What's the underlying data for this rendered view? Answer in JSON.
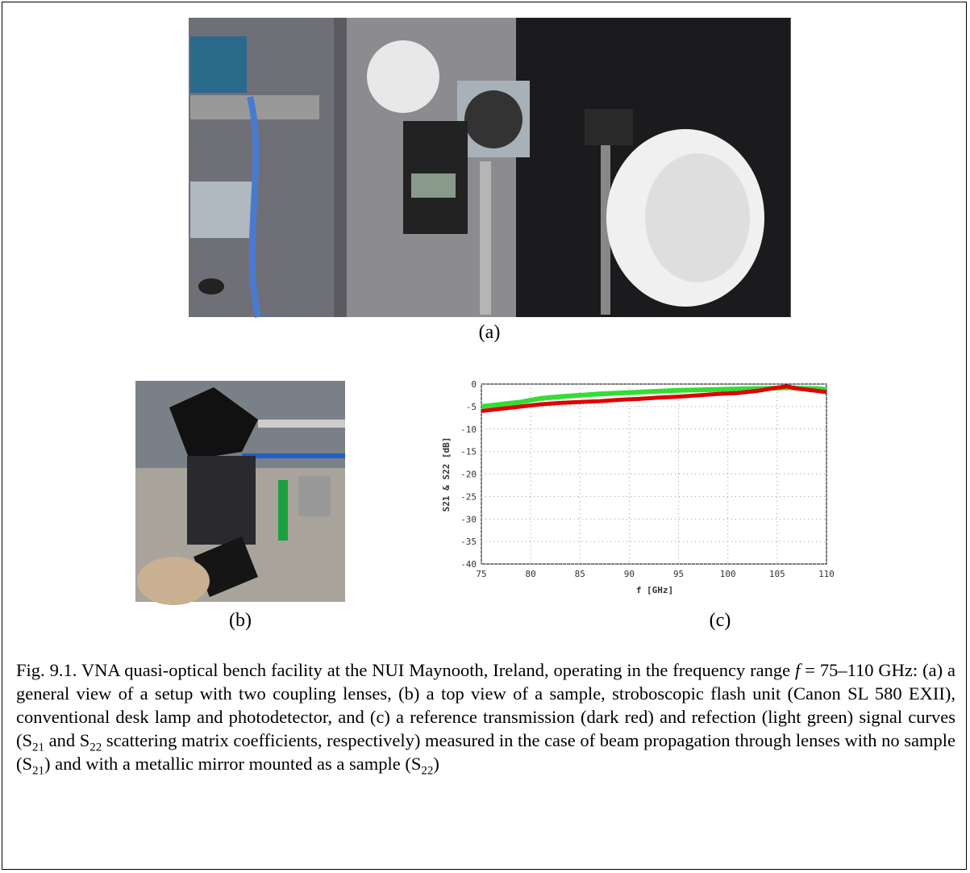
{
  "figure": {
    "labels": {
      "a": "(a)",
      "b": "(b)",
      "c": "(c)"
    },
    "chart_data": {
      "type": "line",
      "xlabel": "f [GHz]",
      "ylabel": "S21 & S22 [dB]",
      "x": [
        75,
        77,
        79,
        81,
        83,
        85,
        87,
        89,
        91,
        93,
        95,
        97,
        99,
        101,
        103,
        105,
        106,
        107,
        109,
        110
      ],
      "series": [
        {
          "color": "#e00000",
          "values": [
            -6.0,
            -5.5,
            -5.0,
            -4.5,
            -4.2,
            -4.0,
            -3.8,
            -3.5,
            -3.3,
            -3.0,
            -2.8,
            -2.5,
            -2.2,
            -2.0,
            -1.5,
            -0.8,
            -0.5,
            -1.0,
            -1.5,
            -1.8
          ]
        },
        {
          "color": "#33dd33",
          "values": [
            -5.0,
            -4.5,
            -4.0,
            -3.2,
            -2.8,
            -2.5,
            -2.2,
            -2.0,
            -1.8,
            -1.6,
            -1.4,
            -1.3,
            -1.2,
            -1.1,
            -1.0,
            -0.9,
            -0.8,
            -0.9,
            -1.0,
            -1.2
          ]
        }
      ],
      "xlim": [
        75,
        110
      ],
      "ylim": [
        -40,
        0
      ],
      "xticks": [
        75,
        80,
        85,
        90,
        95,
        100,
        105,
        110
      ],
      "yticks": [
        0,
        -5,
        -10,
        -15,
        -20,
        -25,
        -30,
        -35,
        -40
      ],
      "grid": true
    },
    "caption": [
      "Fig. 9.1. VNA quasi-optical bench facility at the NUI Maynooth, Ireland, operating in the frequency range ",
      "f",
      " = 75–110 GHz: (a) a general view of a setup with two coupling lenses, (b) a top view of a sample, stroboscopic flash unit (Canon SL 580 EXII), conventional desk lamp and photodetector, and (c) a reference transmission (dark red) and refection (light green) signal curves (S",
      "21",
      " and S",
      "22",
      " scattering matrix coefficients, respectively) measured in the case of beam propagation through lenses with no sample (S",
      "21",
      ") and with a metallic mirror mounted as a sample (S",
      "22",
      ")"
    ]
  }
}
